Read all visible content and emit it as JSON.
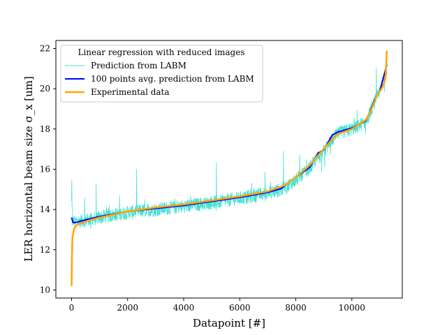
{
  "chart_data": {
    "type": "line",
    "title": "",
    "xlabel": "Datapoint [#]",
    "ylabel": "LER horizontal beam size σ_x [um]",
    "xlim": [
      -560,
      11800
    ],
    "ylim": [
      9.6,
      22.4
    ],
    "xticks": [
      0,
      2000,
      4000,
      6000,
      8000,
      10000
    ],
    "yticks": [
      10,
      12,
      14,
      16,
      18,
      20,
      22
    ],
    "grid": false,
    "legend": {
      "title": "Linear regression with reduced images",
      "placement": "top-left"
    },
    "series": [
      {
        "name": "Prediction from LABM",
        "color": "#40E0D0",
        "style": "noisy-line",
        "description_points": {
          "x": [
            0,
            50,
            150,
            400,
            1000,
            2000,
            3000,
            4000,
            5000,
            6000,
            7000,
            7500,
            8000,
            8500,
            8800,
            9000,
            9300,
            9500,
            10000,
            10500,
            10800,
            11000,
            11250
          ],
          "y": [
            14.3,
            13.4,
            13.4,
            13.45,
            13.6,
            13.85,
            14.0,
            14.15,
            14.35,
            14.55,
            14.8,
            15.0,
            15.45,
            16.05,
            16.6,
            16.9,
            17.45,
            17.75,
            18.0,
            18.35,
            19.3,
            19.85,
            21.0
          ]
        },
        "noise_amplitude": 0.35
      },
      {
        "name": "100 points avg. prediction from LABM",
        "color": "#0000FF",
        "style": "line",
        "x": [
          0,
          50,
          150,
          400,
          1000,
          2000,
          3000,
          4000,
          5000,
          6000,
          7000,
          7500,
          7700,
          8000,
          8500,
          8800,
          9000,
          9300,
          9500,
          10000,
          10500,
          10800,
          11000,
          11250
        ],
        "y": [
          13.6,
          13.35,
          13.35,
          13.45,
          13.65,
          13.9,
          14.05,
          14.2,
          14.4,
          14.6,
          14.85,
          15.05,
          15.3,
          15.6,
          16.1,
          16.8,
          16.95,
          17.7,
          17.85,
          18.05,
          18.4,
          19.4,
          19.9,
          21.2
        ]
      },
      {
        "name": "Experimental data",
        "color": "#FFA500",
        "style": "line",
        "x": [
          0,
          10,
          30,
          80,
          150,
          300,
          600,
          1000,
          2000,
          3000,
          4000,
          5000,
          6000,
          7000,
          7600,
          8000,
          8500,
          8800,
          9000,
          9300,
          9500,
          10000,
          10500,
          10700,
          10900,
          11100,
          11200,
          11250
        ],
        "y": [
          10.2,
          11.5,
          12.6,
          13.0,
          13.2,
          13.3,
          13.45,
          13.6,
          13.9,
          14.1,
          14.25,
          14.45,
          14.65,
          14.9,
          15.2,
          15.6,
          16.2,
          16.7,
          17.0,
          17.5,
          17.75,
          18.0,
          18.45,
          19.0,
          19.65,
          20.1,
          20.5,
          21.9
        ]
      }
    ],
    "annotations": []
  }
}
